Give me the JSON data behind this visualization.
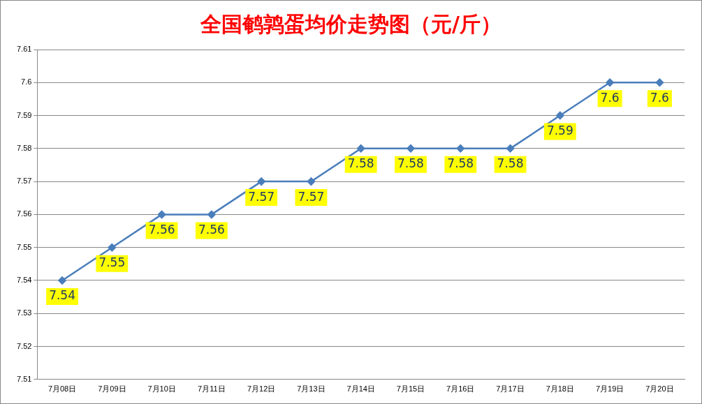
{
  "chart_data": {
    "type": "line",
    "title": "全国鹌鹑蛋均价走势图（元/斤）",
    "categories": [
      "7月08日",
      "7月09日",
      "7月10日",
      "7月11日",
      "7月12日",
      "7月13日",
      "7月14日",
      "7月15日",
      "7月16日",
      "7月17日",
      "7月18日",
      "7月19日",
      "7月20日"
    ],
    "series": [
      {
        "color": "#4a7ebb",
        "values": [
          7.54,
          7.55,
          7.56,
          7.56,
          7.57,
          7.57,
          7.58,
          7.58,
          7.58,
          7.58,
          7.59,
          7.6,
          7.6
        ]
      }
    ],
    "ylim": [
      7.51,
      7.61
    ],
    "yticks": [
      7.51,
      7.52,
      7.53,
      7.54,
      7.55,
      7.56,
      7.57,
      7.58,
      7.59,
      7.6,
      7.61
    ],
    "grid": "y",
    "legend": false,
    "marker": "diamond",
    "line_style": "solid",
    "data_labels": true
  }
}
